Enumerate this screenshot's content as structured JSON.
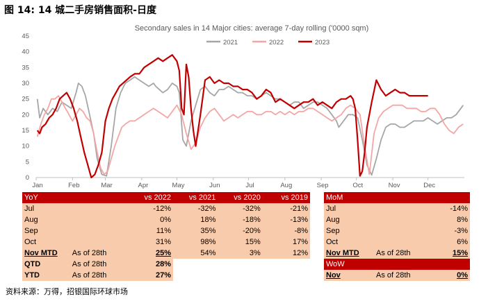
{
  "figure_title": "图 14: 14 城二手房销售面积-日度",
  "source": "资料来源：万得，招银国际环球市场",
  "chart_data": {
    "type": "line",
    "title": "Secondary sales in 14 Major cities: average 7-day rolling  ('0000 sqm)",
    "x_ticks": [
      "Jan",
      "Feb",
      "Mar",
      "Apr",
      "May",
      "Jun",
      "Jul",
      "Aug",
      "Sep",
      "Oct",
      "Nov",
      "Dec"
    ],
    "ylim": [
      0,
      45
    ],
    "y_ticks": [
      0,
      5,
      10,
      15,
      20,
      25,
      30,
      35,
      40,
      45
    ],
    "legend_position": "top",
    "series": [
      {
        "name": "2021",
        "color": "#a6a6a6",
        "x": [
          1,
          3,
          6,
          10,
          14,
          18,
          22,
          26,
          30,
          34,
          36,
          39,
          42,
          45,
          49,
          52,
          56,
          60,
          64,
          68,
          72,
          76,
          80,
          84,
          88,
          92,
          96,
          100,
          102,
          105,
          108,
          112,
          116,
          120,
          122,
          125,
          128,
          132,
          136,
          140,
          144,
          148,
          152,
          156,
          160,
          164,
          168,
          172,
          176,
          180,
          184,
          188,
          192,
          196,
          200,
          204,
          208,
          212,
          216,
          220,
          224,
          228,
          232,
          236,
          240,
          244,
          248,
          252,
          256,
          258,
          262,
          266,
          270,
          274,
          278,
          282,
          286,
          290,
          294,
          298,
          302,
          306,
          310,
          314,
          318,
          322,
          326,
          330,
          334,
          338,
          342,
          346,
          350,
          354,
          358,
          362,
          364
        ],
        "y": [
          25,
          19,
          22,
          20,
          22,
          21,
          24,
          23,
          22,
          27,
          30,
          29,
          26,
          21,
          14,
          6,
          1,
          0.5,
          10,
          22,
          27,
          30,
          31,
          32,
          31,
          30,
          29,
          30,
          29,
          28,
          27,
          28,
          30,
          29,
          27,
          12,
          10,
          18,
          23,
          28,
          29,
          27,
          26,
          28,
          28,
          29,
          28,
          27,
          27,
          26,
          26,
          25,
          26,
          27,
          26,
          25,
          25,
          24,
          23,
          24,
          24,
          22,
          23,
          24,
          24,
          23,
          22,
          20,
          18,
          16,
          18,
          20,
          20,
          19,
          12,
          4,
          0.8,
          6,
          12,
          16,
          17,
          17,
          16,
          16,
          17,
          18,
          18,
          18,
          19,
          18,
          17,
          18,
          19,
          19,
          20,
          22,
          23
        ]
      },
      {
        "name": "2022",
        "color": "#f4a6a6",
        "x": [
          1,
          4,
          7,
          10,
          13,
          16,
          19,
          22,
          25,
          28,
          31,
          34,
          37,
          40,
          43,
          46,
          49,
          52,
          55,
          58,
          61,
          64,
          67,
          70,
          73,
          76,
          80,
          84,
          88,
          92,
          96,
          100,
          104,
          108,
          112,
          116,
          120,
          124,
          128,
          132,
          136,
          140,
          144,
          148,
          152,
          156,
          160,
          164,
          168,
          172,
          176,
          180,
          184,
          188,
          192,
          196,
          200,
          204,
          208,
          212,
          216,
          220,
          224,
          228,
          232,
          236,
          240,
          244,
          248,
          252,
          256,
          260,
          264,
          268,
          272,
          276,
          280,
          284,
          288,
          292,
          296,
          300,
          304,
          308,
          312,
          316,
          320,
          324,
          328,
          332,
          336,
          340,
          344,
          348,
          352,
          356,
          360,
          364
        ],
        "y": [
          13,
          17,
          20,
          22,
          25,
          25,
          26,
          24,
          22,
          20,
          18,
          20,
          22,
          21,
          19,
          18,
          14,
          8,
          3,
          1,
          2,
          6,
          10,
          13,
          16,
          17,
          18,
          18,
          19,
          20,
          21,
          22,
          21,
          20,
          19,
          21,
          23,
          20,
          14,
          9,
          11,
          16,
          19,
          21,
          22,
          20,
          18,
          19,
          20,
          19,
          20,
          21,
          21,
          20,
          20,
          21,
          21,
          20,
          21,
          20,
          21,
          20,
          21,
          21,
          22,
          22,
          21,
          20,
          19,
          18,
          19,
          20,
          22,
          23,
          22,
          20,
          10,
          1,
          14,
          19,
          21,
          22,
          23,
          23,
          23,
          22,
          22,
          22,
          21,
          21,
          22,
          22,
          20,
          17,
          15,
          14,
          16,
          17
        ]
      },
      {
        "name": "2023",
        "color": "#c00000",
        "x": [
          1,
          3,
          5,
          8,
          11,
          14,
          17,
          20,
          23,
          26,
          29,
          32,
          35,
          38,
          41,
          44,
          47,
          50,
          53,
          56,
          59,
          62,
          65,
          68,
          71,
          74,
          77,
          80,
          84,
          88,
          92,
          96,
          100,
          104,
          108,
          112,
          116,
          118,
          120,
          122,
          124,
          126,
          128,
          130,
          132,
          134,
          136,
          140,
          144,
          148,
          152,
          156,
          160,
          164,
          168,
          172,
          176,
          180,
          184,
          188,
          192,
          196,
          200,
          204,
          208,
          212,
          216,
          220,
          224,
          228,
          232,
          236,
          240,
          244,
          248,
          252,
          256,
          260,
          264,
          268,
          270,
          272,
          274,
          276,
          278,
          280,
          282,
          286,
          290,
          294,
          298,
          302,
          306,
          310,
          314,
          318,
          322,
          326,
          330,
          334
        ],
        "y": [
          15,
          14,
          16,
          17,
          19,
          20,
          22,
          25,
          26,
          27,
          25,
          22,
          18,
          13,
          8,
          4,
          0,
          1,
          4,
          8,
          18,
          22,
          25,
          27,
          29,
          30,
          31,
          32,
          33,
          33,
          35,
          36,
          37,
          38,
          37,
          38,
          39,
          38,
          37,
          34,
          22,
          20,
          36,
          32,
          22,
          15,
          10,
          20,
          31,
          32,
          30,
          31,
          30,
          30,
          29,
          29,
          28,
          28,
          27,
          25,
          26,
          28,
          27,
          24,
          25,
          24,
          23,
          22,
          23,
          24,
          24,
          25,
          23,
          24,
          23,
          22,
          24,
          25,
          25,
          26,
          25,
          22,
          12,
          0.5,
          2,
          8,
          16,
          24,
          31,
          28,
          26,
          27,
          28,
          27,
          27,
          26,
          26,
          26,
          26,
          26
        ]
      }
    ]
  },
  "tables": {
    "yoy": {
      "header": [
        "YoY",
        "",
        "vs 2022",
        "vs 2021",
        "vs 2020",
        "vs 2019"
      ],
      "rows": [
        {
          "label": "Jul",
          "note": "",
          "values": [
            "-12%",
            "-32%",
            "-32%",
            "-21%"
          ]
        },
        {
          "label": "Aug",
          "note": "",
          "values": [
            "0%",
            "18%",
            "-18%",
            "-13%"
          ]
        },
        {
          "label": "Sep",
          "note": "",
          "values": [
            "11%",
            "35%",
            "-20%",
            "-8%"
          ]
        },
        {
          "label": "Oct",
          "note": "",
          "values": [
            "31%",
            "98%",
            "15%",
            "17%"
          ]
        },
        {
          "label": "Nov MTD",
          "note": "As of 28th",
          "values": [
            "25%",
            "54%",
            "3%",
            "12%"
          ]
        },
        {
          "label": "QTD",
          "note": "As of 28th",
          "values": [
            "28%"
          ]
        },
        {
          "label": "YTD",
          "note": "As of 28th",
          "values": [
            "27%"
          ]
        }
      ]
    },
    "mom": {
      "header": "MoM",
      "rows": [
        {
          "label": "Jul",
          "note": "",
          "value": "-14%"
        },
        {
          "label": "Aug",
          "note": "",
          "value": "8%"
        },
        {
          "label": "Sep",
          "note": "",
          "value": "-3%"
        },
        {
          "label": "Oct",
          "note": "",
          "value": "6%"
        },
        {
          "label": "Nov MTD",
          "note": "As of 28th",
          "value": "15%"
        }
      ]
    },
    "wow": {
      "header": "WoW",
      "rows": [
        {
          "label": "Nov",
          "note": "As of 28th",
          "value": "0%"
        }
      ]
    }
  }
}
